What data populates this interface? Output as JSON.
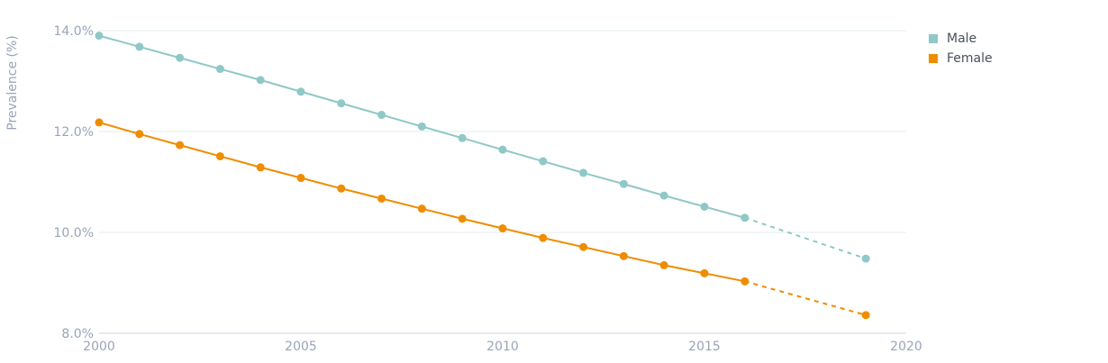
{
  "chart_data": {
    "type": "line",
    "ylabel": "Prevalence (%)",
    "xlim": [
      2000,
      2020
    ],
    "ylim": [
      8.0,
      14.0
    ],
    "x_ticks": [
      "2000",
      "2005",
      "2010",
      "2015",
      "2020"
    ],
    "y_ticks": [
      "8.0%",
      "10.0%",
      "12.0%",
      "14.0%"
    ],
    "x_tick_values": [
      2000,
      2005,
      2010,
      2015,
      2020
    ],
    "y_tick_values": [
      8.0,
      10.0,
      12.0,
      14.0
    ],
    "grid": "horizontal",
    "legend_position": "top-right",
    "x": [
      2000,
      2001,
      2002,
      2003,
      2004,
      2005,
      2006,
      2007,
      2008,
      2009,
      2010,
      2011,
      2012,
      2013,
      2014,
      2015,
      2016
    ],
    "series": [
      {
        "name": "Male",
        "color": "#8fc8c6",
        "values": [
          13.9,
          13.68,
          13.46,
          13.24,
          13.02,
          12.79,
          12.56,
          12.33,
          12.1,
          11.87,
          11.64,
          11.41,
          11.18,
          10.96,
          10.73,
          10.51,
          10.29
        ],
        "projection": {
          "x": [
            2016,
            2019
          ],
          "values": [
            10.29,
            9.48
          ]
        }
      },
      {
        "name": "Female",
        "color": "#f08c00",
        "values": [
          12.18,
          11.95,
          11.73,
          11.51,
          11.29,
          11.08,
          10.87,
          10.67,
          10.47,
          10.27,
          10.08,
          9.89,
          9.71,
          9.53,
          9.35,
          9.19,
          9.03
        ],
        "projection": {
          "x": [
            2016,
            2019
          ],
          "values": [
            9.03,
            8.36
          ]
        }
      }
    ]
  }
}
